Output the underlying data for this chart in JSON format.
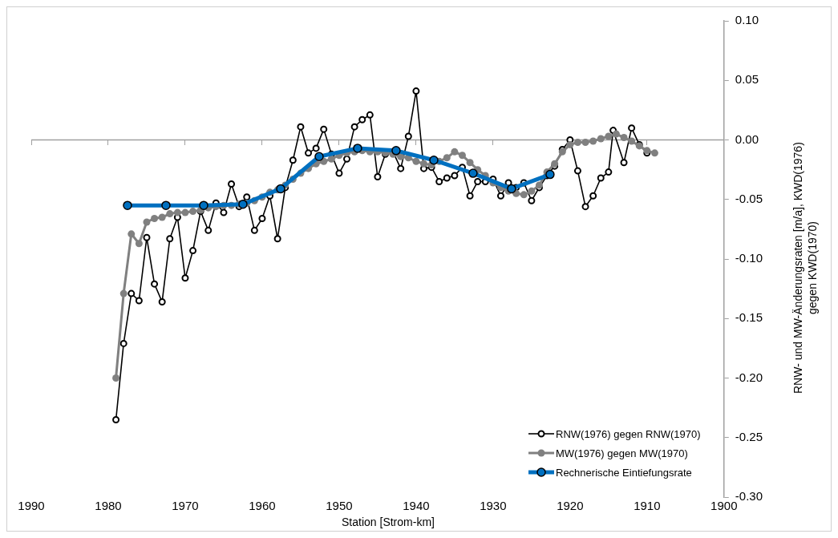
{
  "chart_data": {
    "type": "line",
    "xlabel": "Station [Strom-km]",
    "ylabel": "RNW- und MW-Änderungsraten [m/a], KWD(1976) gegen KWD(1970)",
    "xlim": [
      1990,
      1900
    ],
    "xticks": [
      1990,
      1980,
      1970,
      1960,
      1950,
      1940,
      1930,
      1920,
      1910,
      1900
    ],
    "ylim": [
      -0.3,
      0.1
    ],
    "yticks": [
      {
        "value": -0.3,
        "label": "-0.30"
      },
      {
        "value": -0.25,
        "label": "-0.25"
      },
      {
        "value": -0.2,
        "label": "-0.20"
      },
      {
        "value": -0.15,
        "label": "-0.15"
      },
      {
        "value": -0.1,
        "label": "-0.10"
      },
      {
        "value": -0.05,
        "label": "-0.05"
      },
      {
        "value": 0,
        "label": "0.00"
      },
      {
        "value": 0.05,
        "label": "0.05"
      },
      {
        "value": 0.1,
        "label": "0.10"
      }
    ],
    "grid": false,
    "ref_lines": [
      {
        "axis": "y",
        "value": 0,
        "color": "#a0a0a0",
        "line_style": "solid"
      }
    ],
    "legend": "bottom right",
    "marker": "circle",
    "line_style": "solid",
    "series": [
      {
        "name": "RNW(1976) gegen RNW(1970)",
        "color": "#000000",
        "x": [
          1979,
          1978,
          1977,
          1976,
          1975,
          1974,
          1973,
          1972,
          1971,
          1970,
          1969,
          1968,
          1967,
          1966,
          1965,
          1964,
          1963,
          1962,
          1961,
          1960,
          1959,
          1958,
          1957,
          1956,
          1955,
          1954,
          1953,
          1952,
          1951,
          1950,
          1949,
          1948,
          1947,
          1946,
          1945,
          1944,
          1943,
          1942,
          1941,
          1940,
          1939,
          1938,
          1937,
          1936,
          1935,
          1934,
          1933,
          1932,
          1931,
          1930,
          1929,
          1928,
          1927,
          1926,
          1925,
          1924,
          1923,
          1922,
          1921,
          1920,
          1919,
          1918,
          1917,
          1916,
          1915,
          1914.4,
          1913,
          1912,
          1911,
          1910
        ],
        "values": [
          -0.235,
          -0.171,
          -0.129,
          -0.135,
          -0.082,
          -0.121,
          -0.136,
          -0.083,
          -0.065,
          -0.116,
          -0.093,
          -0.06,
          -0.076,
          -0.053,
          -0.061,
          -0.037,
          -0.056,
          -0.048,
          -0.076,
          -0.066,
          -0.047,
          -0.083,
          -0.04,
          -0.017,
          0.011,
          -0.011,
          -0.007,
          0.009,
          -0.012,
          -0.028,
          -0.016,
          0.011,
          0.017,
          0.021,
          -0.031,
          -0.012,
          -0.01,
          -0.024,
          0.003,
          0.041,
          -0.024,
          -0.023,
          -0.035,
          -0.032,
          -0.03,
          -0.023,
          -0.047,
          -0.035,
          -0.035,
          -0.033,
          -0.047,
          -0.036,
          -0.04,
          -0.036,
          -0.051,
          -0.04,
          -0.03,
          -0.022,
          -0.008,
          0,
          -0.026,
          -0.056,
          -0.047,
          -0.032,
          -0.027,
          0.008,
          -0.019,
          0.01,
          -0.004,
          -0.011
        ]
      },
      {
        "name": "MW(1976) gegen MW(1970)",
        "color": "#808080",
        "x": [
          1979,
          1978,
          1977,
          1976,
          1975,
          1974,
          1973,
          1972,
          1971,
          1970,
          1969,
          1968,
          1967,
          1966,
          1965,
          1964,
          1963,
          1962,
          1961,
          1960,
          1959,
          1958,
          1957,
          1956,
          1955,
          1954,
          1953,
          1952,
          1951,
          1950,
          1949,
          1948,
          1947,
          1946,
          1945,
          1944,
          1943,
          1942,
          1941,
          1940,
          1939,
          1938,
          1937,
          1936,
          1935,
          1934,
          1933,
          1932,
          1931,
          1930,
          1929,
          1928,
          1927,
          1926,
          1925,
          1924,
          1923,
          1922,
          1921,
          1920,
          1919,
          1918,
          1917,
          1916,
          1915,
          1914,
          1913,
          1912,
          1911,
          1910,
          1909
        ],
        "values": [
          -0.2,
          -0.129,
          -0.079,
          -0.087,
          -0.069,
          -0.066,
          -0.065,
          -0.062,
          -0.061,
          -0.061,
          -0.06,
          -0.059,
          -0.057,
          -0.056,
          -0.055,
          -0.055,
          -0.054,
          -0.053,
          -0.051,
          -0.048,
          -0.044,
          -0.042,
          -0.038,
          -0.033,
          -0.028,
          -0.024,
          -0.02,
          -0.018,
          -0.016,
          -0.013,
          -0.011,
          -0.01,
          -0.009,
          -0.01,
          -0.01,
          -0.011,
          -0.012,
          -0.014,
          -0.015,
          -0.018,
          -0.02,
          -0.021,
          -0.018,
          -0.015,
          -0.01,
          -0.013,
          -0.019,
          -0.025,
          -0.03,
          -0.036,
          -0.04,
          -0.043,
          -0.045,
          -0.046,
          -0.043,
          -0.038,
          -0.027,
          -0.02,
          -0.01,
          -0.004,
          -0.002,
          -0.002,
          -0.001,
          0.001,
          0.003,
          0.005,
          0.002,
          -0.001,
          -0.005,
          -0.009,
          -0.011
        ]
      },
      {
        "name": "Rechnerische Eintiefungsrate",
        "color": "#0070c0",
        "x": [
          1977.5,
          1972.5,
          1967.6,
          1962.5,
          1957.6,
          1952.6,
          1947.6,
          1942.6,
          1937.7,
          1932.6,
          1927.6,
          1922.6
        ],
        "values": [
          -0.055,
          -0.055,
          -0.055,
          -0.054,
          -0.041,
          -0.014,
          -0.007,
          -0.009,
          -0.017,
          -0.028,
          -0.041,
          -0.029
        ]
      }
    ]
  }
}
